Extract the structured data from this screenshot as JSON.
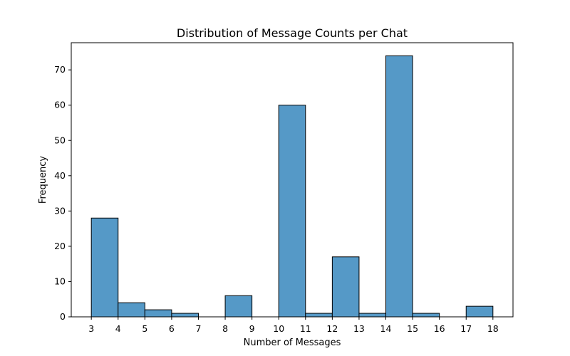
{
  "chart_data": {
    "type": "bar",
    "title": "Distribution of Message Counts per Chat",
    "xlabel": "Number of Messages",
    "ylabel": "Frequency",
    "bars": [
      {
        "x0": 3.0,
        "x1": 4.0,
        "value": 28
      },
      {
        "x0": 4.0,
        "x1": 5.0,
        "value": 4
      },
      {
        "x0": 5.0,
        "x1": 6.0,
        "value": 2
      },
      {
        "x0": 6.0,
        "x1": 7.0,
        "value": 1
      },
      {
        "x0": 8.0,
        "x1": 9.0,
        "value": 6
      },
      {
        "x0": 10.0,
        "x1": 11.0,
        "value": 60
      },
      {
        "x0": 11.0,
        "x1": 12.0,
        "value": 1
      },
      {
        "x0": 12.0,
        "x1": 13.0,
        "value": 17
      },
      {
        "x0": 13.0,
        "x1": 14.0,
        "value": 1
      },
      {
        "x0": 14.0,
        "x1": 15.0,
        "value": 74
      },
      {
        "x0": 15.0,
        "x1": 16.0,
        "value": 1
      },
      {
        "x0": 17.0,
        "x1": 18.0,
        "value": 3
      }
    ],
    "xlim": [
      2.25,
      18.75
    ],
    "ylim": [
      0,
      77.7
    ],
    "xticks": [
      3,
      4,
      5,
      6,
      7,
      8,
      9,
      10,
      11,
      12,
      13,
      14,
      15,
      16,
      17,
      18
    ],
    "yticks": [
      0,
      10,
      20,
      30,
      40,
      50,
      60,
      70
    ],
    "bar_color": "#5599c7",
    "edge_color": "#000000",
    "grid": false,
    "legend": "none"
  }
}
